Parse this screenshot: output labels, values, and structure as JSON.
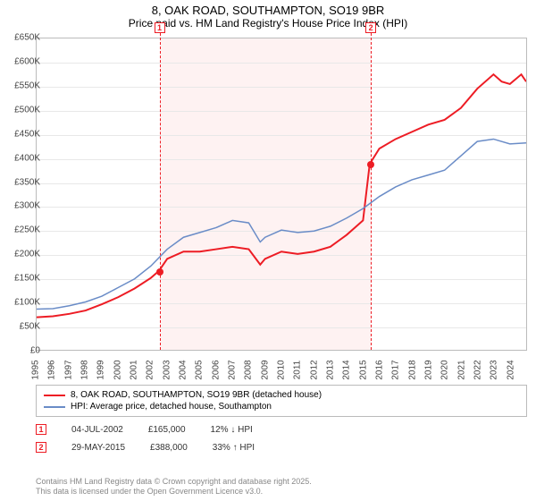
{
  "title_line1": "8, OAK ROAD, SOUTHAMPTON, SO19 9BR",
  "title_line2": "Price paid vs. HM Land Registry's House Price Index (HPI)",
  "chart": {
    "type": "line",
    "ylim": [
      0,
      650000
    ],
    "ytick_step": 50000,
    "ylabels": [
      "£0",
      "£50K",
      "£100K",
      "£150K",
      "£200K",
      "£250K",
      "£300K",
      "£350K",
      "£400K",
      "£450K",
      "£500K",
      "£550K",
      "£600K",
      "£650K"
    ],
    "x_start_year": 1995,
    "x_end_year": 2025,
    "xlabels": [
      "1995",
      "1996",
      "1997",
      "1998",
      "1999",
      "2000",
      "2001",
      "2002",
      "2003",
      "2004",
      "2005",
      "2006",
      "2007",
      "2008",
      "2009",
      "2010",
      "2011",
      "2012",
      "2013",
      "2014",
      "2015",
      "2016",
      "2017",
      "2018",
      "2019",
      "2020",
      "2021",
      "2022",
      "2023",
      "2024"
    ],
    "background_color": "#ffffff",
    "grid_color": "#e8e8e8",
    "border_color": "#bbbbbb",
    "series": [
      {
        "name": "price_paid",
        "label": "8, OAK ROAD, SOUTHAMPTON, SO19 9BR (detached house)",
        "color": "#ed1c24",
        "width": 2,
        "data": [
          [
            1995.0,
            68000
          ],
          [
            1996.0,
            70000
          ],
          [
            1997.0,
            75000
          ],
          [
            1998.0,
            82000
          ],
          [
            1999.0,
            95000
          ],
          [
            2000.0,
            110000
          ],
          [
            2001.0,
            128000
          ],
          [
            2002.0,
            150000
          ],
          [
            2002.5,
            165000
          ],
          [
            2003.0,
            190000
          ],
          [
            2004.0,
            205000
          ],
          [
            2005.0,
            205000
          ],
          [
            2006.0,
            210000
          ],
          [
            2007.0,
            215000
          ],
          [
            2008.0,
            210000
          ],
          [
            2008.7,
            178000
          ],
          [
            2009.0,
            190000
          ],
          [
            2010.0,
            205000
          ],
          [
            2011.0,
            200000
          ],
          [
            2012.0,
            205000
          ],
          [
            2013.0,
            215000
          ],
          [
            2014.0,
            240000
          ],
          [
            2015.0,
            270000
          ],
          [
            2015.41,
            388000
          ],
          [
            2016.0,
            420000
          ],
          [
            2017.0,
            440000
          ],
          [
            2018.0,
            455000
          ],
          [
            2019.0,
            470000
          ],
          [
            2020.0,
            480000
          ],
          [
            2021.0,
            505000
          ],
          [
            2022.0,
            545000
          ],
          [
            2023.0,
            575000
          ],
          [
            2023.5,
            560000
          ],
          [
            2024.0,
            555000
          ],
          [
            2024.7,
            575000
          ],
          [
            2025.0,
            560000
          ]
        ]
      },
      {
        "name": "hpi",
        "label": "HPI: Average price, detached house, Southampton",
        "color": "#6a8cc7",
        "width": 1.5,
        "data": [
          [
            1995.0,
            85000
          ],
          [
            1996.0,
            86000
          ],
          [
            1997.0,
            92000
          ],
          [
            1998.0,
            100000
          ],
          [
            1999.0,
            112000
          ],
          [
            2000.0,
            130000
          ],
          [
            2001.0,
            148000
          ],
          [
            2002.0,
            175000
          ],
          [
            2003.0,
            210000
          ],
          [
            2004.0,
            235000
          ],
          [
            2005.0,
            245000
          ],
          [
            2006.0,
            255000
          ],
          [
            2007.0,
            270000
          ],
          [
            2008.0,
            265000
          ],
          [
            2008.7,
            225000
          ],
          [
            2009.0,
            235000
          ],
          [
            2010.0,
            250000
          ],
          [
            2011.0,
            245000
          ],
          [
            2012.0,
            248000
          ],
          [
            2013.0,
            258000
          ],
          [
            2014.0,
            275000
          ],
          [
            2015.0,
            295000
          ],
          [
            2016.0,
            320000
          ],
          [
            2017.0,
            340000
          ],
          [
            2018.0,
            355000
          ],
          [
            2019.0,
            365000
          ],
          [
            2020.0,
            375000
          ],
          [
            2021.0,
            405000
          ],
          [
            2022.0,
            435000
          ],
          [
            2023.0,
            440000
          ],
          [
            2024.0,
            430000
          ],
          [
            2025.0,
            432000
          ]
        ]
      }
    ],
    "sales": [
      {
        "id": "1",
        "year": 2002.5,
        "price": 165000
      },
      {
        "id": "2",
        "year": 2015.41,
        "price": 388000
      }
    ],
    "shade_color": "rgba(237,28,36,0.06)"
  },
  "legend": {
    "rows": [
      {
        "color": "#ed1c24",
        "label": "8, OAK ROAD, SOUTHAMPTON, SO19 9BR (detached house)"
      },
      {
        "color": "#6a8cc7",
        "label": "HPI: Average price, detached house, Southampton"
      }
    ]
  },
  "sale_rows": [
    {
      "id": "1",
      "date": "04-JUL-2002",
      "price": "£165,000",
      "pct": "12%",
      "dir": "down",
      "suffix": "HPI"
    },
    {
      "id": "2",
      "date": "29-MAY-2015",
      "price": "£388,000",
      "pct": "33%",
      "dir": "up",
      "suffix": "HPI"
    }
  ],
  "copyright_line1": "Contains HM Land Registry data © Crown copyright and database right 2025.",
  "copyright_line2": "This data is licensed under the Open Government Licence v3.0."
}
